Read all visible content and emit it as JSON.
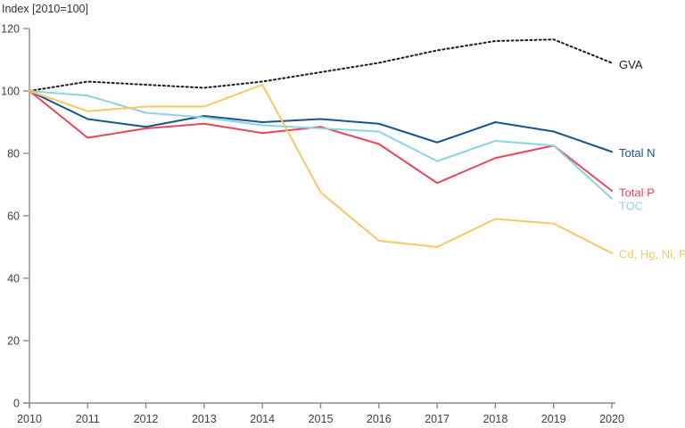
{
  "title": "Index [2010=100]",
  "chart_data": {
    "type": "line",
    "title": "Index [2010=100]",
    "xlabel": "",
    "ylabel": "Index [2010=100]",
    "x": [
      2010,
      2011,
      2012,
      2013,
      2014,
      2015,
      2016,
      2017,
      2018,
      2019,
      2020
    ],
    "ylim": [
      0,
      120
    ],
    "ytick_step": 20,
    "grid": false,
    "legend_position": "end-of-line-labels-right",
    "axis_color": "#8c8c8c",
    "tick_label_color": "#404040",
    "series": [
      {
        "id": "gva",
        "name": "GVA",
        "color": "#1a1a1a",
        "style": "dotted",
        "label_dy": 2,
        "values": [
          100,
          103,
          102,
          101,
          103,
          106,
          109,
          113,
          116,
          116.5,
          109
        ]
      },
      {
        "id": "total-n",
        "name": "Total N",
        "color": "#17558c",
        "style": "solid",
        "label_dy": 1,
        "values": [
          100,
          91,
          88.5,
          92,
          90,
          91,
          89.5,
          83.5,
          90,
          87,
          80.5
        ]
      },
      {
        "id": "total-p",
        "name": "Total P",
        "color": "#e8475c",
        "style": "solid",
        "label_dy": 2,
        "values": [
          100,
          85,
          88,
          89.5,
          86.5,
          88.5,
          83,
          70.5,
          78.5,
          82.5,
          68
        ]
      },
      {
        "id": "toc",
        "name": "TOC",
        "color": "#8dd3e3",
        "style": "solid",
        "label_dy": 8,
        "values": [
          100,
          98.5,
          93,
          91.5,
          89,
          88,
          87,
          77.5,
          84,
          82.5,
          65.5
        ]
      },
      {
        "id": "cd-hg-ni-pb",
        "name": "Cd, Hg, Ni, Pb",
        "color": "#fac863",
        "style": "solid",
        "label_dy": 1,
        "values": [
          100,
          93.5,
          95,
          95,
          102,
          67.5,
          52,
          50,
          59,
          57.5,
          48
        ]
      }
    ]
  }
}
